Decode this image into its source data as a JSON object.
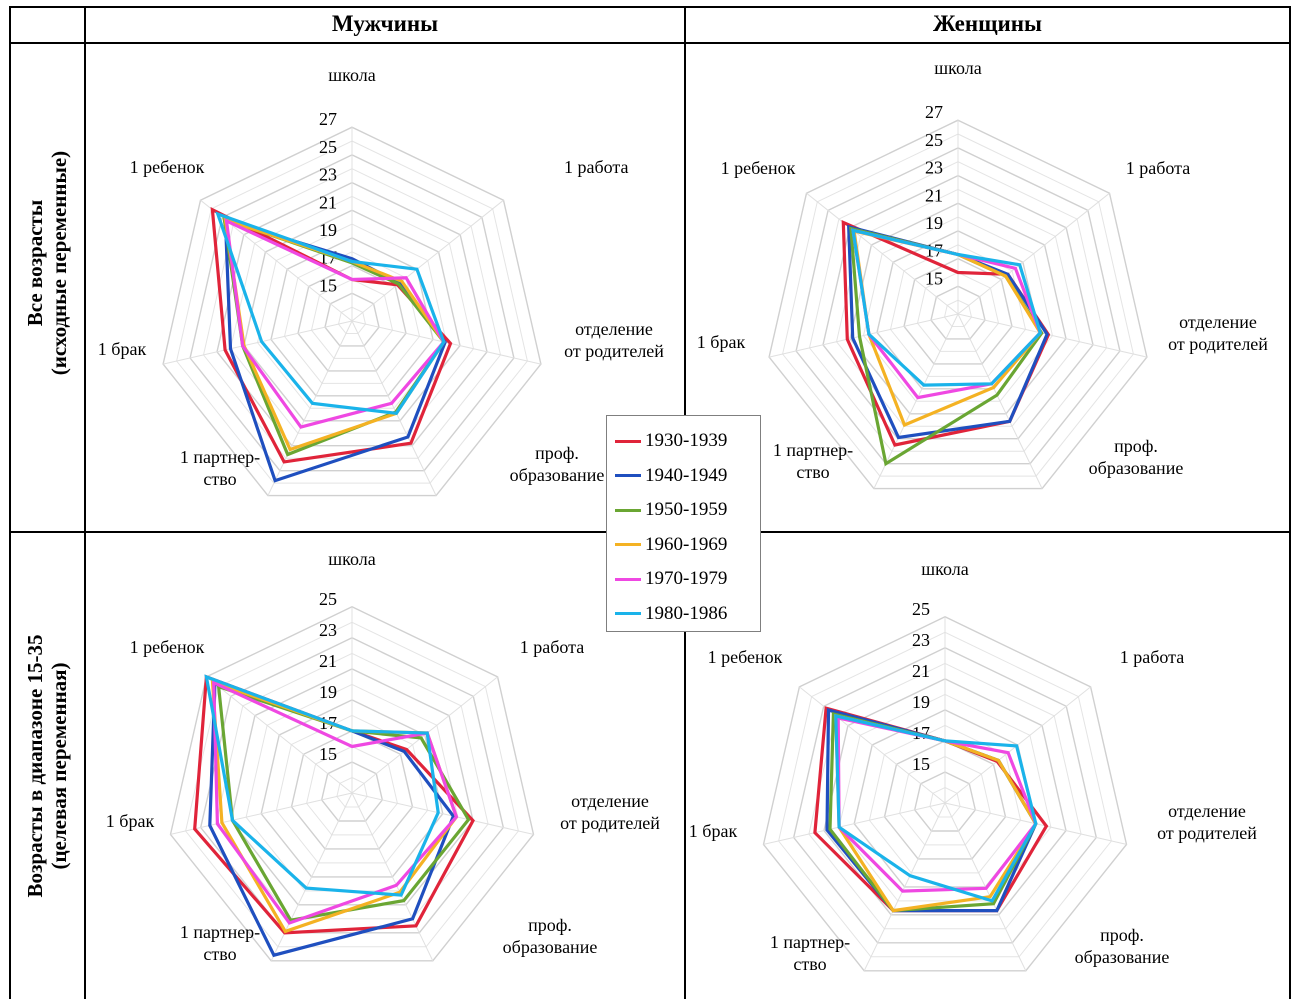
{
  "headers": {
    "columns": [
      "Мужчины",
      "Женщины"
    ],
    "rows": [
      [
        "Все возрасты",
        "(исходные переменные)"
      ],
      [
        "Возрасты в диапазоне 15-35",
        "(целевая переменная)"
      ]
    ]
  },
  "legend": [
    {
      "name": "1930-1939",
      "color": "#e0243a"
    },
    {
      "name": "1940-1949",
      "color": "#1f4fbf"
    },
    {
      "name": "1950-1959",
      "color": "#6aa633"
    },
    {
      "name": "1960-1969",
      "color": "#f4b223"
    },
    {
      "name": "1970-1979",
      "color": "#ef48e2"
    },
    {
      "name": "1980-1986",
      "color": "#1ab3ea"
    }
  ],
  "chart_data": [
    {
      "type": "radar",
      "panel": "Мужчины / Все возрасты",
      "categories": [
        "школа",
        "1 работа",
        "отделение\nот родителей",
        "проф.\nобразование",
        "1 партнер-\nство",
        "1 брак",
        "1 ребенок"
      ],
      "rlim": [
        13,
        27
      ],
      "ticks": [
        15,
        17,
        19,
        21,
        23,
        25,
        27
      ],
      "series": [
        {
          "name": "1930-1939",
          "values": [
            16.0,
            17.2,
            20.3,
            22.8,
            24.3,
            22.4,
            25.9
          ]
        },
        {
          "name": "1940-1949",
          "values": [
            17.5,
            17.4,
            19.9,
            22.3,
            25.8,
            22.0,
            24.7
          ]
        },
        {
          "name": "1950-1959",
          "values": [
            17.2,
            17.3,
            19.8,
            20.3,
            23.7,
            21.1,
            24.8
          ]
        },
        {
          "name": "1960-1969",
          "values": [
            17.3,
            17.6,
            19.8,
            20.4,
            23.3,
            21.0,
            24.7
          ]
        },
        {
          "name": "1970-1979",
          "values": [
            16.0,
            18.0,
            19.8,
            19.6,
            21.5,
            21.1,
            24.6
          ]
        },
        {
          "name": "1980-1986",
          "values": [
            17.3,
            19.0,
            19.8,
            20.4,
            19.6,
            19.7,
            25.4
          ]
        }
      ]
    },
    {
      "type": "radar",
      "panel": "Женщины / Все возрасты",
      "categories": [
        "школа",
        "1 работа",
        "отделение\nот родителей",
        "проф.\nобразование",
        "1 партнер-\nство",
        "1 брак",
        "1 ребенок"
      ],
      "rlim": [
        13,
        27
      ],
      "ticks": [
        15,
        17,
        19,
        21,
        23,
        25,
        27
      ],
      "series": [
        {
          "name": "1930-1939",
          "values": [
            16.0,
            17.6,
            19.7,
            21.6,
            23.5,
            21.2,
            23.6
          ]
        },
        {
          "name": "1940-1949",
          "values": [
            17.3,
            17.6,
            19.6,
            21.6,
            22.9,
            20.8,
            23.1
          ]
        },
        {
          "name": "1950-1959",
          "values": [
            17.3,
            17.4,
            19.2,
            19.5,
            25.0,
            20.3,
            22.9
          ]
        },
        {
          "name": "1960-1969",
          "values": [
            17.3,
            17.4,
            19.1,
            18.9,
            21.9,
            19.6,
            22.6
          ]
        },
        {
          "name": "1970-1979",
          "values": [
            17.3,
            18.3,
            19.1,
            18.6,
            19.7,
            19.6,
            22.7
          ]
        },
        {
          "name": "1980-1986",
          "values": [
            17.3,
            18.7,
            19.1,
            18.6,
            18.7,
            19.6,
            22.7
          ]
        }
      ]
    },
    {
      "type": "radar",
      "panel": "Мужчины / Возрасты в диапазоне 15-35",
      "categories": [
        "школа",
        "1 работа",
        "отделение\nот родителей",
        "проф.\nобразование",
        "1 партнер-\nство",
        "1 брак",
        "1 ребенок"
      ],
      "rlim": [
        13,
        25
      ],
      "ticks": [
        15,
        17,
        19,
        21,
        23,
        25
      ],
      "series": [
        {
          "name": "1930-1939",
          "values": [
            17.0,
            17.5,
            21.0,
            22.5,
            23.0,
            23.4,
            25.0
          ]
        },
        {
          "name": "1940-1949",
          "values": [
            17.0,
            17.3,
            19.7,
            22.0,
            24.6,
            22.4,
            24.3
          ]
        },
        {
          "name": "1950-1959",
          "values": [
            17.0,
            18.7,
            20.7,
            20.7,
            22.1,
            20.9,
            24.0
          ]
        },
        {
          "name": "1960-1969",
          "values": [
            17.0,
            19.2,
            19.9,
            20.1,
            22.9,
            21.6,
            24.5
          ]
        },
        {
          "name": "1970-1979",
          "values": [
            16.0,
            19.2,
            19.9,
            19.6,
            22.3,
            21.9,
            24.4
          ]
        },
        {
          "name": "1980-1986",
          "values": [
            17.0,
            19.2,
            18.7,
            20.3,
            19.8,
            20.9,
            25.0
          ]
        }
      ]
    },
    {
      "type": "radar",
      "panel": "Женщины / Возрасты в диапазоне 15-35",
      "categories": [
        "школа",
        "1 работа",
        "отделение\nот родителей",
        "проф.\nобразование",
        "1 партнер-\nство",
        "1 брак",
        "1 ребенок"
      ],
      "rlim": [
        13,
        25
      ],
      "ticks": [
        15,
        17,
        19,
        21,
        23,
        25
      ],
      "series": [
        {
          "name": "1930-1939",
          "values": [
            17.0,
            17.3,
            19.7,
            20.7,
            20.7,
            21.6,
            22.8
          ]
        },
        {
          "name": "1940-1949",
          "values": [
            17.0,
            17.4,
            19.0,
            20.7,
            20.7,
            20.8,
            22.6
          ]
        },
        {
          "name": "1950-1959",
          "values": [
            17.0,
            17.4,
            19.0,
            20.2,
            20.7,
            20.6,
            22.2
          ]
        },
        {
          "name": "1960-1969",
          "values": [
            17.0,
            17.4,
            19.0,
            19.7,
            20.7,
            20.0,
            22.0
          ]
        },
        {
          "name": "1970-1979",
          "values": [
            17.0,
            18.2,
            19.0,
            19.1,
            19.3,
            20.0,
            21.8
          ]
        },
        {
          "name": "1980-1986",
          "values": [
            17.0,
            18.9,
            19.0,
            20.0,
            18.2,
            20.0,
            22.0
          ]
        }
      ]
    }
  ]
}
